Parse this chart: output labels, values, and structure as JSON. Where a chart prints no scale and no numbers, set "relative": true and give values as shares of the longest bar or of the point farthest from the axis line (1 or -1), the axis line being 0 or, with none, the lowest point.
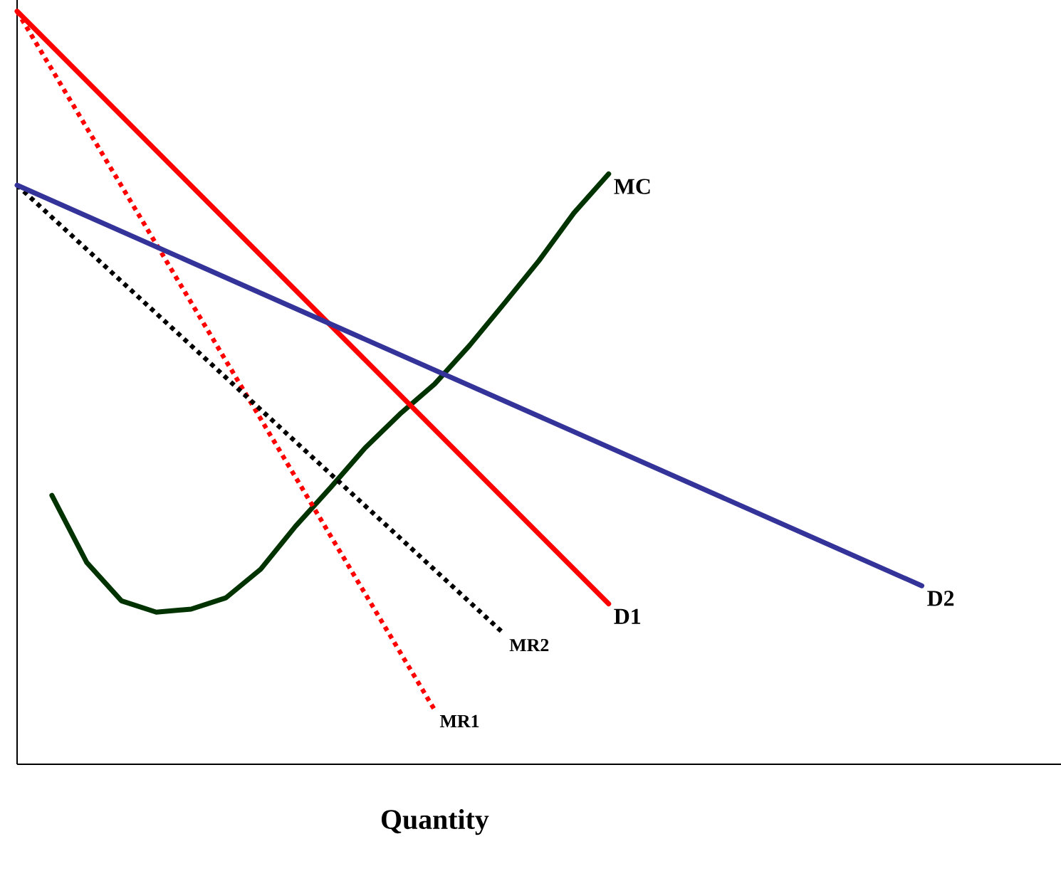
{
  "chart_data": {
    "type": "line",
    "relative": true,
    "xlabel": "Quantity",
    "legend": false,
    "marker": "none",
    "categories": [
      null,
      null,
      null,
      null,
      null,
      null,
      null,
      null,
      null,
      null,
      null,
      null,
      null,
      null,
      null,
      null,
      null,
      null,
      null,
      null,
      null,
      null,
      null,
      null,
      null,
      null,
      null,
      null,
      null,
      null,
      null
    ],
    "series": [
      {
        "name": "MC",
        "color": "#003300",
        "line_style": "solid",
        "values": [
          null,
          0.357,
          0.268,
          0.217,
          0.202,
          0.206,
          0.221,
          0.259,
          0.316,
          0.367,
          0.42,
          0.465,
          0.505,
          0.556,
          0.612,
          0.669,
          0.732,
          0.784,
          null,
          null,
          null,
          null,
          null,
          null,
          null,
          null,
          null,
          null,
          null,
          null,
          null
        ]
      },
      {
        "name": "MR1",
        "color": "#ff0000",
        "line_style": "dotted",
        "values": [
          1.0,
          null,
          null,
          null,
          null,
          null,
          null,
          null,
          null,
          null,
          null,
          null,
          0.072,
          null,
          null,
          null,
          null,
          null,
          null,
          null,
          null,
          null,
          null,
          null,
          null,
          null,
          null,
          null,
          null,
          null,
          null
        ]
      },
      {
        "name": "MR2",
        "color": "#000000",
        "line_style": "dotted",
        "values": [
          0.769,
          null,
          null,
          null,
          null,
          null,
          null,
          null,
          null,
          null,
          null,
          null,
          null,
          null,
          0.173,
          null,
          null,
          null,
          null,
          null,
          null,
          null,
          null,
          null,
          null,
          null,
          null,
          null,
          null,
          null,
          null
        ]
      },
      {
        "name": "D1",
        "color": "#ff0000",
        "line_style": "solid",
        "values": [
          1.0,
          null,
          null,
          null,
          null,
          null,
          null,
          null,
          null,
          null,
          null,
          null,
          null,
          null,
          null,
          null,
          null,
          0.213,
          null,
          null,
          null,
          null,
          null,
          null,
          null,
          null,
          null,
          null,
          null,
          null,
          null
        ]
      },
      {
        "name": "D2",
        "color": "#333399",
        "line_style": "solid",
        "values": [
          0.769,
          null,
          null,
          null,
          null,
          null,
          null,
          null,
          null,
          null,
          null,
          null,
          null,
          null,
          null,
          null,
          null,
          null,
          null,
          null,
          null,
          null,
          null,
          null,
          null,
          null,
          0.237,
          null,
          null,
          null,
          null
        ]
      }
    ]
  }
}
